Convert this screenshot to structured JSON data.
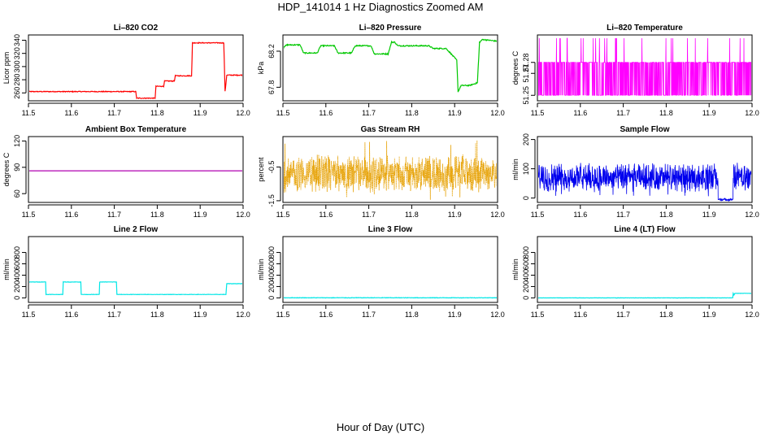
{
  "figure": {
    "title": "HDP_141014  1 Hz Diagnostics Zoomed AM",
    "xlabel": "Hour of Day (UTC)"
  },
  "chart_data": [
    {
      "type": "line",
      "title": "Li–820 CO2",
      "ylabel": "Licor ppm",
      "color": "#ff0000",
      "xlim": [
        11.5,
        12.0
      ],
      "ylim": [
        248,
        348
      ],
      "xticks": [
        "11.5",
        "11.6",
        "11.7",
        "11.8",
        "11.9",
        "12.0"
      ],
      "yticks": [
        "260",
        "280",
        "300",
        "320",
        "340"
      ],
      "series": [
        {
          "noise": 0.6,
          "x": [
            11.5,
            11.75,
            11.752,
            11.795,
            11.797,
            11.815,
            11.817,
            11.84,
            11.842,
            11.88,
            11.882,
            11.955,
            11.958,
            11.962,
            11.965,
            12.0
          ],
          "values": [
            262,
            262,
            252,
            252,
            270,
            270,
            278,
            278,
            286,
            286,
            336,
            336,
            262,
            287,
            287,
            287
          ]
        }
      ]
    },
    {
      "type": "line",
      "title": "Li–820 Pressure",
      "ylabel": "kPa",
      "color": "#00c800",
      "xlim": [
        11.5,
        12.0
      ],
      "ylim": [
        67.65,
        68.38
      ],
      "xticks": [
        "11.5",
        "11.6",
        "11.7",
        "11.8",
        "11.9",
        "12.0"
      ],
      "yticks": [
        "67.8",
        "68.2"
      ],
      "series": [
        {
          "noise": 0.006,
          "x": [
            11.5,
            11.502,
            11.51,
            11.54,
            11.548,
            11.58,
            11.588,
            11.62,
            11.628,
            11.66,
            11.668,
            11.705,
            11.713,
            11.745,
            11.753,
            11.76,
            11.768,
            11.8,
            11.808,
            11.84,
            11.85,
            11.88,
            11.89,
            11.905,
            11.908,
            11.915,
            11.935,
            11.953,
            11.958,
            11.965,
            12.0
          ],
          "values": [
            68.2,
            68.25,
            68.27,
            68.27,
            68.18,
            68.18,
            68.26,
            68.26,
            68.18,
            68.18,
            68.26,
            68.26,
            68.17,
            68.17,
            68.3,
            68.3,
            68.26,
            68.26,
            68.26,
            68.26,
            68.23,
            68.23,
            68.18,
            68.1,
            67.75,
            67.82,
            67.82,
            67.85,
            68.3,
            68.33,
            68.31
          ]
        }
      ]
    },
    {
      "type": "line",
      "title": "Li–820 Temperature",
      "ylabel": "degrees C",
      "color": "#ff00ff",
      "xlim": [
        11.5,
        12.0
      ],
      "ylim": [
        51.245,
        51.305
      ],
      "xticks": [
        "11.5",
        "11.6",
        "11.7",
        "11.8",
        "11.9",
        "12.0"
      ],
      "yticks": [
        "51.25",
        "51.27",
        "51.28"
      ],
      "series": [
        {
          "name": "",
          "x": [
            11.5,
            12.0
          ],
          "values": [
            51.25,
            51.28
          ]
        }
      ]
    },
    {
      "type": "line",
      "title": "Ambient Box Temperature",
      "ylabel": "degrees C",
      "color": "#b000b0",
      "xlim": [
        11.5,
        12.0
      ],
      "ylim": [
        50,
        125
      ],
      "xticks": [
        "11.5",
        "11.6",
        "11.7",
        "11.8",
        "11.9",
        "12.0"
      ],
      "yticks": [
        "60",
        "90",
        "120"
      ],
      "series": [
        {
          "x": [
            11.5,
            12.0
          ],
          "values": [
            86,
            86
          ]
        }
      ]
    },
    {
      "type": "line",
      "title": "Gas Stream RH",
      "ylabel": "percent",
      "color": "#e6a000",
      "xlim": [
        11.5,
        12.0
      ],
      "ylim": [
        -1.55,
        0.4
      ],
      "xticks": [
        "11.5",
        "11.6",
        "11.7",
        "11.8",
        "11.9",
        "12.0"
      ],
      "yticks": [
        "-1.5",
        "-0.5"
      ],
      "series": [
        {
          "x": [
            11.5,
            12.0
          ],
          "values": [
            -0.7,
            -0.7
          ]
        }
      ]
    },
    {
      "type": "line",
      "title": "Sample Flow",
      "ylabel": "ml/min",
      "color": "#0000ee",
      "xlim": [
        11.5,
        12.0
      ],
      "ylim": [
        -15,
        210
      ],
      "xticks": [
        "11.5",
        "11.6",
        "11.7",
        "11.8",
        "11.9",
        "12.0"
      ],
      "yticks": [
        "0",
        "100",
        "200"
      ],
      "series": [
        {
          "x": [
            11.5,
            11.92,
            11.922,
            11.955,
            11.957,
            12.0
          ],
          "values": [
            70,
            70,
            -3,
            -3,
            70,
            70
          ]
        }
      ]
    },
    {
      "type": "line",
      "title": "Line 2 Flow",
      "ylabel": "ml/min",
      "color": "#00e6e6",
      "xlim": [
        11.5,
        12.0
      ],
      "ylim": [
        -80,
        1080
      ],
      "xticks": [
        "11.5",
        "11.6",
        "11.7",
        "11.8",
        "11.9",
        "12.0"
      ],
      "yticks": [
        "0",
        "200",
        "400",
        "600",
        "800"
      ],
      "series": [
        {
          "noise": 3,
          "x": [
            11.5,
            11.54,
            11.541,
            11.58,
            11.581,
            11.622,
            11.623,
            11.665,
            11.666,
            11.705,
            11.706,
            11.96,
            11.962,
            12.0
          ],
          "values": [
            280,
            280,
            60,
            60,
            280,
            280,
            60,
            60,
            280,
            280,
            60,
            60,
            250,
            250
          ]
        }
      ]
    },
    {
      "type": "line",
      "title": "Line 3 Flow",
      "ylabel": "ml/min",
      "color": "#00e6e6",
      "xlim": [
        11.5,
        12.0
      ],
      "ylim": [
        -80,
        1080
      ],
      "xticks": [
        "11.5",
        "11.6",
        "11.7",
        "11.8",
        "11.9",
        "12.0"
      ],
      "yticks": [
        "0",
        "200",
        "400",
        "600",
        "800"
      ],
      "series": [
        {
          "noise": 4,
          "x": [
            11.5,
            12.0
          ],
          "values": [
            2,
            2
          ]
        }
      ]
    },
    {
      "type": "line",
      "title": "Line 4 (LT) Flow",
      "ylabel": "ml/min",
      "color": "#00e6e6",
      "xlim": [
        11.5,
        12.0
      ],
      "ylim": [
        -80,
        1080
      ],
      "xticks": [
        "11.5",
        "11.6",
        "11.7",
        "11.8",
        "11.9",
        "12.0"
      ],
      "yticks": [
        "0",
        "200",
        "400",
        "600",
        "800"
      ],
      "series": [
        {
          "noise": 2,
          "x": [
            11.5,
            11.955,
            11.956,
            11.958,
            11.96,
            12.0
          ],
          "values": [
            0,
            0,
            80,
            50,
            80,
            80
          ]
        }
      ]
    }
  ]
}
